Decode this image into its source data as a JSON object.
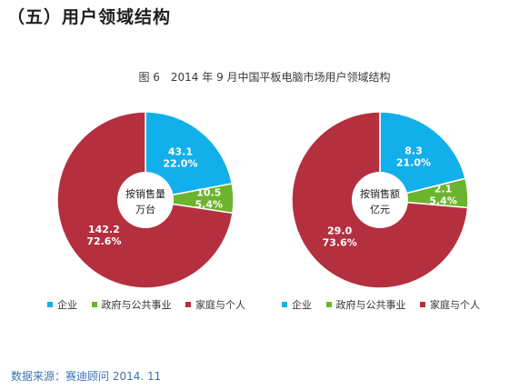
{
  "section_title": "（五）用户领域结构",
  "chart_caption": "图 6　2014 年 9 月中国平板电脑市场用户领域结构",
  "source": "数据来源：赛迪顾问 2014. 11",
  "colors": {
    "blue": "#12b0ea",
    "green": "#6cb42d",
    "red": "#b5303f"
  },
  "chart_data": [
    {
      "type": "pie",
      "center_label": [
        "按销售量",
        "万台"
      ],
      "slices": [
        {
          "name": "企业",
          "value": 43.1,
          "percent": "22.0%",
          "color": "#12b0ea"
        },
        {
          "name": "政府与公共事业",
          "value": 10.5,
          "percent": "5.4%",
          "color": "#6cb42d"
        },
        {
          "name": "家庭与个人",
          "value": 142.2,
          "percent": "72.6%",
          "color": "#b5303f"
        }
      ],
      "legend": [
        "企业",
        "政府与公共事业",
        "家庭与个人"
      ]
    },
    {
      "type": "pie",
      "center_label": [
        "按销售额",
        "亿元"
      ],
      "slices": [
        {
          "name": "企业",
          "value": 8.3,
          "percent": "21.0%",
          "color": "#12b0ea"
        },
        {
          "name": "政府与公共事业",
          "value": 2.1,
          "percent": "5.4%",
          "color": "#6cb42d"
        },
        {
          "name": "家庭与个人",
          "value": 29.0,
          "percent": "73.6%",
          "color": "#b5303f"
        }
      ],
      "legend": [
        "企业",
        "政府与公共事业",
        "家庭与个人"
      ]
    }
  ]
}
